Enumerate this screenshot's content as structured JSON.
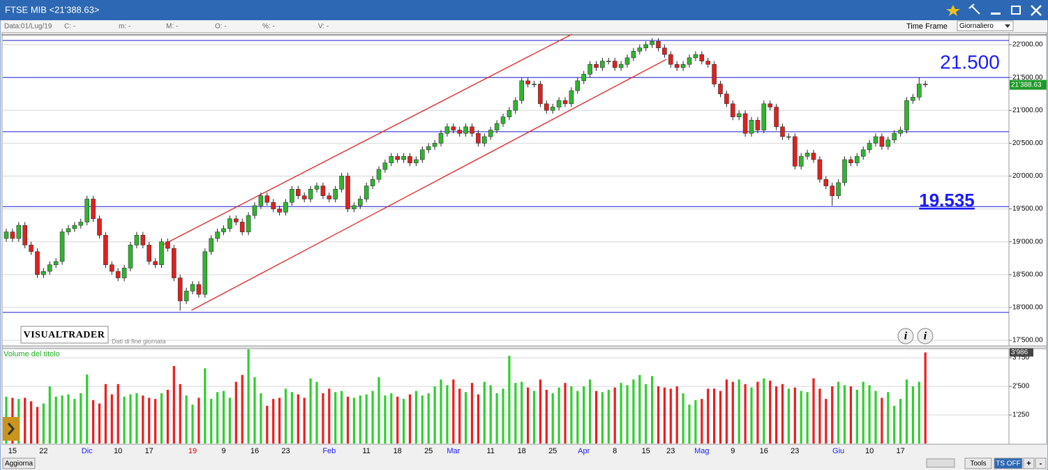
{
  "window": {
    "title": "FTSE MIB <21'388.63>",
    "info": [
      "Data:01/Lug/19",
      "C: -",
      "m: -",
      "M: -",
      "O: -",
      "%: -",
      "V: -"
    ],
    "time_frame_label": "Time Frame",
    "time_frame": "Giornaliero",
    "brand": "VISUALTRADER",
    "brand_note": "Dati di fine giornata",
    "volume_title": "Volume del titolo",
    "buttons": [
      "Aggiorna",
      "Tools",
      "TS OFF",
      "+",
      "-"
    ]
  },
  "chart_data": [
    {
      "type": "candlestick",
      "up_color": "#2fb52f",
      "down_color": "#e0201f",
      "categories": [
        null,
        "15",
        null,
        null,
        null,
        null,
        "22",
        null,
        null,
        null,
        null,
        null,
        null,
        "Dic",
        null,
        null,
        null,
        null,
        "10",
        null,
        null,
        null,
        null,
        "17",
        null,
        null,
        null,
        null,
        null,
        null,
        "19",
        null,
        null,
        null,
        null,
        "9",
        null,
        null,
        null,
        null,
        "16",
        null,
        null,
        null,
        null,
        "23",
        null,
        null,
        null,
        null,
        null,
        null,
        "Feb",
        null,
        null,
        null,
        null,
        null,
        "11",
        null,
        null,
        null,
        null,
        "18",
        null,
        null,
        null,
        null,
        "25",
        null,
        null,
        null,
        "Mar",
        null,
        null,
        null,
        null,
        null,
        "11",
        null,
        null,
        null,
        null,
        "18",
        null,
        null,
        null,
        null,
        "25",
        null,
        null,
        null,
        null,
        "Apr",
        null,
        null,
        null,
        null,
        "8",
        null,
        null,
        null,
        null,
        "15",
        null,
        null,
        null,
        "23",
        null,
        null,
        null,
        null,
        "Mag",
        null,
        null,
        null,
        null,
        "9",
        null,
        null,
        null,
        null,
        "16",
        null,
        null,
        null,
        null,
        "23",
        null,
        null,
        null,
        null,
        null,
        null,
        "Giu",
        null,
        null,
        null,
        null,
        "10",
        null,
        null,
        null,
        null,
        "17",
        null,
        null,
        null,
        null
      ],
      "category_colors": [
        null,
        "#000000",
        null,
        null,
        null,
        null,
        "#000000",
        null,
        null,
        null,
        null,
        null,
        null,
        "#1a1aff",
        null,
        null,
        null,
        null,
        "#000000",
        null,
        null,
        null,
        null,
        "#000000",
        null,
        null,
        null,
        null,
        null,
        null,
        "#e00000",
        null,
        null,
        null,
        null,
        "#000000",
        null,
        null,
        null,
        null,
        "#000000",
        null,
        null,
        null,
        null,
        "#000000",
        null,
        null,
        null,
        null,
        null,
        null,
        "#1a1aff",
        null,
        null,
        null,
        null,
        null,
        "#000000",
        null,
        null,
        null,
        null,
        "#000000",
        null,
        null,
        null,
        null,
        "#000000",
        null,
        null,
        null,
        "#1a1aff",
        null,
        null,
        null,
        null,
        null,
        "#000000",
        null,
        null,
        null,
        null,
        "#000000",
        null,
        null,
        null,
        null,
        "#000000",
        null,
        null,
        null,
        null,
        "#1a1aff",
        null,
        null,
        null,
        null,
        "#000000",
        null,
        null,
        null,
        null,
        "#000000",
        null,
        null,
        null,
        "#000000",
        null,
        null,
        null,
        null,
        "#1a1aff",
        null,
        null,
        null,
        null,
        "#000000",
        null,
        null,
        null,
        null,
        "#000000",
        null,
        null,
        null,
        null,
        "#000000",
        null,
        null,
        null,
        null,
        null,
        null,
        "#1a1aff",
        null,
        null,
        null,
        null,
        "#000000",
        null,
        null,
        null,
        null,
        "#000000",
        null,
        null,
        null,
        null
      ],
      "open": [
        19050,
        19150,
        19050,
        19250,
        18950,
        18850,
        18500,
        18550,
        18650,
        18700,
        19150,
        19200,
        19250,
        19300,
        19650,
        19350,
        19100,
        18650,
        18550,
        18450,
        18600,
        18950,
        19100,
        18950,
        18700,
        18650,
        19000,
        18900,
        18450,
        18100,
        18250,
        18350,
        18200,
        18850,
        19050,
        19150,
        19200,
        19350,
        19300,
        19150,
        19400,
        19550,
        19700,
        19600,
        19500,
        19450,
        19600,
        19800,
        19700,
        19650,
        19800,
        19850,
        19700,
        19650,
        19800,
        20000,
        19500,
        19550,
        19650,
        19850,
        19950,
        20100,
        20200,
        20300,
        20250,
        20300,
        20200,
        20250,
        20400,
        20450,
        20500,
        20650,
        20750,
        20700,
        20650,
        20750,
        20650,
        20500,
        20600,
        20700,
        20800,
        20900,
        21000,
        21150,
        21450,
        21400,
        21400,
        21100,
        21000,
        21050,
        21150,
        21100,
        21300,
        21450,
        21550,
        21700,
        21650,
        21750,
        21750,
        21650,
        21700,
        21800,
        21900,
        21950,
        22000,
        22050,
        21950,
        21850,
        21700,
        21650,
        21700,
        21800,
        21850,
        21750,
        21700,
        21400,
        21250,
        21100,
        20900,
        20950,
        20650,
        20850,
        20700,
        21100,
        21050,
        20750,
        20600,
        20600,
        20150,
        20300,
        20350,
        20250,
        19950,
        19850,
        19700,
        19900,
        20250,
        20200,
        20300,
        20400,
        20500,
        20600,
        20450,
        20550,
        20650,
        20700,
        21150,
        21200,
        21400
      ],
      "high": [
        19200,
        19200,
        19300,
        19300,
        19000,
        18900,
        18600,
        18700,
        18750,
        19200,
        19250,
        19300,
        19350,
        19700,
        19700,
        19400,
        19150,
        18700,
        18600,
        18650,
        19000,
        19150,
        19150,
        19000,
        18750,
        19050,
        19050,
        18950,
        18500,
        18300,
        18400,
        18400,
        18900,
        19100,
        19200,
        19250,
        19400,
        19400,
        19350,
        19450,
        19600,
        19750,
        19750,
        19650,
        19550,
        19650,
        19850,
        19850,
        19750,
        19850,
        19900,
        19900,
        19750,
        19850,
        20050,
        20050,
        19600,
        19700,
        19900,
        20000,
        20150,
        20250,
        20350,
        20350,
        20350,
        20350,
        20300,
        20450,
        20500,
        20550,
        20700,
        20800,
        20800,
        20750,
        20800,
        20800,
        20700,
        20650,
        20750,
        20850,
        20950,
        21050,
        21200,
        21500,
        21500,
        21450,
        21450,
        21150,
        21100,
        21200,
        21200,
        21350,
        21500,
        21600,
        21750,
        21750,
        21800,
        21800,
        21800,
        21750,
        21850,
        21950,
        22000,
        22050,
        22100,
        22100,
        22000,
        21900,
        21750,
        21750,
        21850,
        21900,
        21900,
        21800,
        21750,
        21450,
        21300,
        21150,
        21000,
        21000,
        20900,
        20900,
        21150,
        21150,
        21100,
        20800,
        20650,
        20650,
        20350,
        20400,
        20400,
        20300,
        20000,
        19900,
        19950,
        20300,
        20300,
        20350,
        20450,
        20550,
        20650,
        20650,
        20600,
        20700,
        20750,
        21200,
        21250,
        21500,
        21450
      ],
      "low": [
        19000,
        19000,
        19000,
        18900,
        18800,
        18450,
        18450,
        18500,
        18600,
        18650,
        19100,
        19150,
        19200,
        19250,
        19300,
        19050,
        18600,
        18500,
        18400,
        18400,
        18550,
        18900,
        18900,
        18650,
        18600,
        18600,
        18850,
        18400,
        17950,
        18050,
        18200,
        18150,
        18150,
        18800,
        19000,
        19100,
        19150,
        19250,
        19100,
        19100,
        19350,
        19500,
        19550,
        19450,
        19400,
        19400,
        19550,
        19650,
        19600,
        19600,
        19750,
        19650,
        19600,
        19600,
        19750,
        19450,
        19450,
        19500,
        19600,
        19800,
        19900,
        20050,
        20150,
        20200,
        20200,
        20150,
        20150,
        20200,
        20350,
        20400,
        20450,
        20600,
        20650,
        20600,
        20600,
        20600,
        20450,
        20450,
        20550,
        20650,
        20750,
        20850,
        20950,
        21100,
        21350,
        21350,
        21050,
        20950,
        20950,
        21000,
        21050,
        21050,
        21250,
        21400,
        21500,
        21600,
        21600,
        21700,
        21600,
        21600,
        21650,
        21750,
        21850,
        21900,
        21950,
        21900,
        21800,
        21650,
        21600,
        21600,
        21650,
        21750,
        21700,
        21650,
        21350,
        21200,
        21050,
        20850,
        20850,
        20600,
        20600,
        20650,
        20650,
        21000,
        20700,
        20550,
        20550,
        20100,
        20100,
        20250,
        20200,
        19900,
        19800,
        19550,
        19650,
        19850,
        20150,
        20150,
        20250,
        20350,
        20450,
        20400,
        20400,
        20500,
        20600,
        20650,
        21100,
        21150,
        21350
      ],
      "close": [
        19150,
        19050,
        19250,
        18950,
        18850,
        18500,
        18550,
        18650,
        18700,
        19150,
        19200,
        19250,
        19300,
        19650,
        19350,
        19100,
        18650,
        18550,
        18450,
        18600,
        18950,
        19100,
        18950,
        18700,
        18650,
        19000,
        18900,
        18450,
        18100,
        18250,
        18350,
        18200,
        18850,
        19050,
        19150,
        19200,
        19350,
        19300,
        19150,
        19400,
        19550,
        19700,
        19600,
        19500,
        19450,
        19600,
        19800,
        19700,
        19650,
        19800,
        19850,
        19700,
        19650,
        19800,
        20000,
        19500,
        19550,
        19650,
        19850,
        19950,
        20100,
        20200,
        20300,
        20250,
        20300,
        20200,
        20250,
        20400,
        20450,
        20500,
        20650,
        20750,
        20700,
        20650,
        20750,
        20650,
        20500,
        20600,
        20700,
        20800,
        20900,
        21000,
        21150,
        21450,
        21400,
        21400,
        21100,
        21000,
        21050,
        21150,
        21100,
        21300,
        21450,
        21550,
        21700,
        21650,
        21750,
        21750,
        21650,
        21700,
        21800,
        21900,
        21950,
        22000,
        22050,
        21950,
        21850,
        21700,
        21650,
        21700,
        21800,
        21850,
        21750,
        21700,
        21400,
        21250,
        21100,
        20900,
        20950,
        20650,
        20850,
        20700,
        21100,
        21050,
        20750,
        20600,
        20600,
        20150,
        20300,
        20350,
        20250,
        19950,
        19850,
        19700,
        19900,
        20250,
        20200,
        20300,
        20400,
        20500,
        20600,
        20450,
        20550,
        20650,
        20700,
        21150,
        21200,
        21400,
        21388.63
      ],
      "last_label": "21'388.63",
      "ylim": [
        17405,
        22170
      ],
      "yticks": [
        {
          "value": 17500,
          "label": "17'500.00"
        },
        {
          "value": 18000,
          "label": "18'000.00"
        },
        {
          "value": 18500,
          "label": "18'500.00"
        },
        {
          "value": 19000,
          "label": "19'000.00"
        },
        {
          "value": 19500,
          "label": "19'500.00"
        },
        {
          "value": 20000,
          "label": "20'000.00"
        },
        {
          "value": 20500,
          "label": "20'500.00"
        },
        {
          "value": 21000,
          "label": "21'000.00"
        },
        {
          "value": 21500,
          "label": "21'500.00"
        },
        {
          "value": 22000,
          "label": "22'000.00"
        }
      ],
      "grid": true,
      "levels": [
        22064,
        21500,
        20675,
        19535,
        17925
      ],
      "level_color": "#1a1acc",
      "trendlines": [
        {
          "color": "#e02020",
          "x": [
            24.8,
            91.1
          ],
          "y": [
            18933,
            22159
          ]
        },
        {
          "color": "#e02020",
          "x": [
            29.8,
            106.3
          ],
          "y": [
            17956,
            21777
          ]
        }
      ],
      "annotations": [
        "21.500",
        "19.535"
      ],
      "annotation_color": "#1a1aff"
    },
    {
      "type": "bar",
      "up_color": "#2fcf2f",
      "down_color": "#ee1c1c",
      "values": [
        2050,
        2000,
        1950,
        2000,
        1850,
        1600,
        1750,
        2500,
        2050,
        2100,
        2150,
        1950,
        2200,
        3020,
        1900,
        1750,
        2600,
        2150,
        2600,
        2050,
        2150,
        2200,
        2100,
        2000,
        1950,
        2200,
        2350,
        3390,
        2600,
        2100,
        1700,
        2000,
        3290,
        1950,
        2250,
        2300,
        2000,
        2700,
        3000,
        4120,
        2900,
        2200,
        1650,
        1950,
        2000,
        2400,
        2250,
        2150,
        2000,
        2850,
        2700,
        2200,
        2400,
        2250,
        2300,
        2050,
        2000,
        2100,
        2150,
        2300,
        2900,
        2100,
        2200,
        2050,
        1950,
        2150,
        2300,
        2100,
        2200,
        2500,
        2800,
        2550,
        2800,
        2400,
        2250,
        2650,
        2150,
        2700,
        2550,
        2200,
        2400,
        3840,
        2650,
        2700,
        2450,
        2300,
        2800,
        2350,
        2200,
        2450,
        2650,
        2500,
        2300,
        2500,
        2800,
        2300,
        2250,
        2350,
        2450,
        2650,
        2550,
        2800,
        3000,
        2600,
        2950,
        2500,
        2450,
        2400,
        2500,
        2200,
        1700,
        1900,
        1950,
        2400,
        2400,
        2300,
        2800,
        2700,
        2800,
        2600,
        2450,
        2700,
        2850,
        2750,
        2500,
        2600,
        2400,
        2450,
        2300,
        2250,
        2850,
        2400,
        1950,
        2500,
        2700,
        2550,
        2500,
        2350,
        2700,
        2550,
        2300,
        2000,
        2250,
        1650,
        1950,
        2800,
        2500,
        2700,
        3986
      ],
      "last_label": "3'986",
      "ylim": [
        0,
        4150
      ],
      "yticks": [
        {
          "value": 1250,
          "label": "1'250"
        },
        {
          "value": 2500,
          "label": "2'500"
        },
        {
          "value": 3750,
          "label": "3'750"
        }
      ]
    }
  ]
}
